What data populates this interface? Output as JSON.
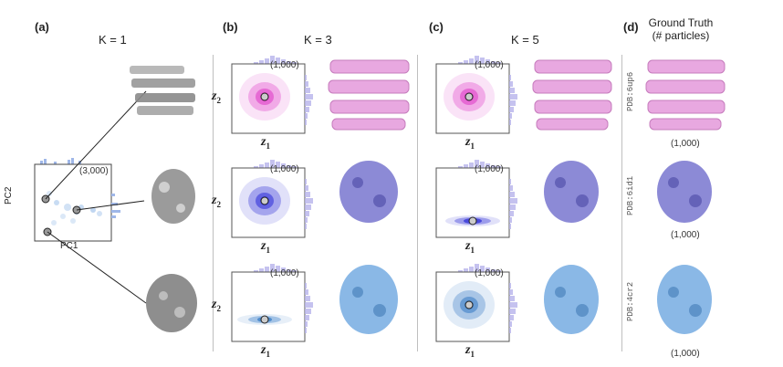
{
  "panels": {
    "a": {
      "label": "(a)",
      "k": "K = 1",
      "count": "(3,000)",
      "x_label": "PC1",
      "y_label": "PC2"
    },
    "b": {
      "label": "(b)",
      "k": "K = 3"
    },
    "c": {
      "label": "(c)",
      "k": "K = 5"
    },
    "d": {
      "label": "(d)",
      "title_line1": "Ground Truth",
      "title_line2": "(# particles)"
    }
  },
  "plots": {
    "b": [
      {
        "count": "(1,000)",
        "xlab": "z",
        "xsub": "1",
        "ylab": "z",
        "ysub": "2"
      },
      {
        "count": "(1,000)",
        "xlab": "z",
        "xsub": "1",
        "ylab": "z",
        "ysub": "2"
      },
      {
        "count": "(1,000)",
        "xlab": "z",
        "xsub": "1",
        "ylab": "z",
        "ysub": "2"
      }
    ],
    "c": [
      {
        "count": "(1,000)",
        "xlab": "z",
        "xsub": "1"
      },
      {
        "count": "(1,000)",
        "xlab": "z",
        "xsub": "1"
      },
      {
        "count": "(1,000)",
        "xlab": "z",
        "xsub": "1"
      }
    ]
  },
  "ground_truth": [
    {
      "pdb": "PDB:6up6",
      "count": "(1,000)"
    },
    {
      "pdb": "PDB:6id1",
      "count": "(1,000)"
    },
    {
      "pdb": "PDB:4cr2",
      "count": "(1,000)"
    }
  ],
  "colors": {
    "pink": "#e040c8",
    "purple": "#3535d8",
    "blue": "#3d7fc7",
    "pink_vol": "#e8a8e0",
    "purple_vol": "#8c8ad6",
    "blue_vol": "#8ab8e6",
    "gray_vol": "#8a8a8a"
  }
}
